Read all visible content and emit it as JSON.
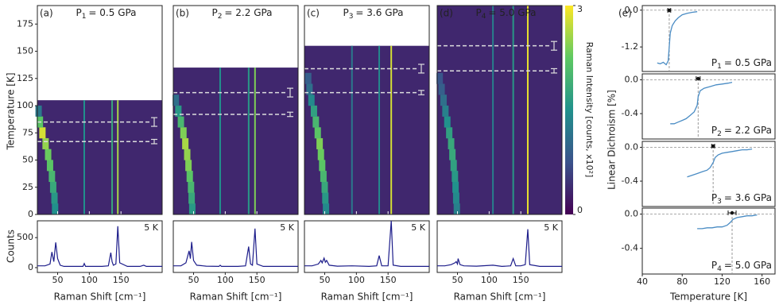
{
  "chart_data": [
    {
      "type": "heatmap",
      "panel": "(a)",
      "pressure": {
        "symbol": "P",
        "index": "1",
        "text": "= 0.5 GPa"
      },
      "ylabel": "Temperature [K]",
      "xlim": [
        18,
        215
      ],
      "xticks": [
        50,
        100,
        150
      ],
      "ylim": [
        0,
        192
      ],
      "yticks": [
        0,
        25,
        50,
        75,
        100,
        125,
        150,
        175
      ],
      "tmax": 105,
      "background": 0.35,
      "soft_mode": {
        "temperature": [
          5,
          15,
          25,
          35,
          45,
          55,
          65,
          75,
          85,
          95
        ],
        "shift": [
          46,
          45,
          43,
          41,
          38,
          35,
          31,
          26,
          22,
          20
        ],
        "intensity": [
          1.5,
          1.6,
          1.8,
          2.0,
          2.2,
          2.3,
          2.5,
          2.8,
          2.2,
          1.2
        ]
      },
      "lines": {
        "shift": [
          92,
          136,
          145
        ],
        "intensity": [
          1.5,
          1.8,
          2.6
        ]
      },
      "transitions": [
        {
          "value": 85,
          "error": 4
        },
        {
          "value": 67,
          "error": 2
        }
      ]
    },
    {
      "type": "heatmap",
      "panel": "(b)",
      "pressure": {
        "symbol": "P",
        "index": "2",
        "text": "= 2.2 GPa"
      },
      "xlim": [
        18,
        215
      ],
      "xticks": [
        50,
        100,
        150
      ],
      "ylim": [
        0,
        192
      ],
      "tmax": 135,
      "background": 0.35,
      "soft_mode": {
        "temperature": [
          5,
          15,
          25,
          35,
          45,
          55,
          65,
          75,
          85,
          95,
          105
        ],
        "shift": [
          48,
          47,
          46,
          44,
          42,
          40,
          37,
          34,
          30,
          26,
          22
        ],
        "intensity": [
          1.6,
          1.8,
          2.0,
          2.2,
          2.4,
          2.5,
          2.6,
          2.4,
          2.0,
          1.6,
          1.1
        ]
      },
      "lines": {
        "shift": [
          92,
          137,
          147
        ],
        "intensity": [
          1.5,
          1.6,
          2.4
        ]
      },
      "transitions": [
        {
          "value": 112,
          "error": 4
        },
        {
          "value": 92,
          "error": 2
        }
      ]
    },
    {
      "type": "heatmap",
      "panel": "(c)",
      "pressure": {
        "symbol": "P",
        "index": "3",
        "text": "= 3.6 GPa"
      },
      "xlim": [
        18,
        215
      ],
      "xticks": [
        50,
        100,
        150
      ],
      "ylim": [
        0,
        192
      ],
      "tmax": 155,
      "background": 0.35,
      "soft_mode": {
        "temperature": [
          5,
          15,
          25,
          35,
          45,
          55,
          65,
          75,
          85,
          95,
          105,
          115,
          125
        ],
        "shift": [
          52,
          51,
          50,
          48,
          46,
          44,
          42,
          39,
          36,
          33,
          29,
          26,
          24
        ],
        "intensity": [
          1.4,
          1.6,
          1.8,
          2.0,
          2.2,
          2.3,
          2.4,
          2.2,
          2.0,
          1.7,
          1.4,
          1.1,
          0.9
        ]
      },
      "lines": {
        "shift": [
          93,
          136,
          155
        ],
        "intensity": [
          1.2,
          1.4,
          2.8
        ]
      },
      "transitions": [
        {
          "value": 134,
          "error": 4
        },
        {
          "value": 112,
          "error": 2
        }
      ]
    },
    {
      "type": "heatmap",
      "panel": "(d)",
      "pressure": {
        "symbol": "P",
        "index": "4",
        "text": "= 5.0 GPa"
      },
      "xlim": [
        18,
        215
      ],
      "xticks": [
        50,
        100,
        150
      ],
      "ylim": [
        0,
        192
      ],
      "tmax": 192,
      "background": 0.35,
      "soft_mode": {
        "temperature": [
          5,
          15,
          25,
          35,
          45,
          55,
          65,
          75,
          85,
          95,
          105,
          115,
          125
        ],
        "shift": [
          49,
          48,
          47,
          46,
          44,
          42,
          40,
          37,
          34,
          31,
          28,
          25,
          22
        ],
        "intensity": [
          1.3,
          1.4,
          1.5,
          1.6,
          1.7,
          1.8,
          1.8,
          1.7,
          1.5,
          1.3,
          1.1,
          0.9,
          0.8
        ]
      },
      "lines": {
        "shift": [
          106,
          138,
          161
        ],
        "intensity": [
          1.3,
          1.6,
          2.9
        ]
      },
      "transitions": [
        {
          "value": 155,
          "error": 4
        },
        {
          "value": 132,
          "error": 2
        }
      ],
      "colorbar": {
        "label": "Raman Intensity [counts, x10²]",
        "lim": [
          0,
          3
        ],
        "ticks": [
          0,
          3
        ]
      }
    },
    {
      "type": "line",
      "xlabel": "Raman Shift [cm⁻¹]",
      "ylabel": "Counts",
      "annotation": "5 K",
      "xlim": [
        18,
        215
      ],
      "xticks": [
        50,
        100,
        150
      ],
      "ylim": [
        -80,
        780
      ],
      "yticks": [
        0,
        500
      ],
      "color": "#1c1c8a",
      "x": [
        18,
        30,
        38,
        41,
        44,
        47,
        50,
        54,
        60,
        80,
        90,
        92,
        94,
        120,
        130,
        134,
        136,
        138,
        142,
        145,
        148,
        160,
        180,
        186,
        190,
        215
      ],
      "values": [
        30,
        30,
        60,
        260,
        100,
        420,
        150,
        40,
        20,
        20,
        20,
        70,
        20,
        20,
        30,
        250,
        100,
        40,
        60,
        690,
        80,
        20,
        20,
        40,
        20,
        20
      ]
    },
    {
      "type": "line",
      "xlabel": "Raman Shift [cm⁻¹]",
      "annotation": "5 K",
      "xlim": [
        18,
        215
      ],
      "xticks": [
        50,
        100,
        150
      ],
      "ylim": [
        -80,
        780
      ],
      "color": "#1c1c8a",
      "x": [
        18,
        30,
        38,
        43,
        45,
        47,
        50,
        55,
        70,
        90,
        92,
        94,
        120,
        132,
        137,
        140,
        143,
        147,
        150,
        160,
        215
      ],
      "values": [
        30,
        30,
        80,
        280,
        150,
        430,
        120,
        40,
        25,
        20,
        40,
        20,
        20,
        30,
        350,
        60,
        40,
        650,
        60,
        20,
        20
      ]
    },
    {
      "type": "line",
      "xlabel": "Raman Shift [cm⁻¹]",
      "annotation": "5 K",
      "xlim": [
        18,
        215
      ],
      "xticks": [
        50,
        100,
        150
      ],
      "ylim": [
        -80,
        780
      ],
      "color": "#1c1c8a",
      "x": [
        18,
        30,
        40,
        44,
        46,
        49,
        51,
        53,
        57,
        70,
        93,
        120,
        132,
        136,
        140,
        150,
        155,
        158,
        170,
        215
      ],
      "values": [
        30,
        30,
        60,
        120,
        80,
        160,
        90,
        120,
        40,
        25,
        30,
        20,
        30,
        200,
        30,
        30,
        780,
        40,
        20,
        20
      ]
    },
    {
      "type": "line",
      "xlabel": "Raman Shift [cm⁻¹]",
      "annotation": "5 K",
      "xlim": [
        18,
        215
      ],
      "xticks": [
        50,
        100,
        150
      ],
      "ylim": [
        -80,
        780
      ],
      "color": "#1c1c8a",
      "x": [
        18,
        30,
        40,
        46,
        48,
        50,
        51,
        54,
        60,
        80,
        106,
        120,
        134,
        138,
        142,
        150,
        157,
        161,
        164,
        180,
        215
      ],
      "values": [
        30,
        30,
        50,
        80,
        100,
        60,
        150,
        50,
        30,
        25,
        40,
        20,
        30,
        150,
        30,
        30,
        50,
        640,
        50,
        20,
        20
      ]
    },
    {
      "type": "dichroism",
      "panel": "(e)",
      "ylabel": "Linear Dichroism [%]",
      "pressure": {
        "symbol": "P",
        "index": "1",
        "text": "= 0.5 GPa"
      },
      "xlim": [
        40,
        173
      ],
      "ylim": [
        -2.0,
        0.15
      ],
      "yticks": [
        {
          "value": 0,
          "label": "0.0"
        },
        -1.2
      ],
      "color": "#4a8cc4",
      "x": [
        55,
        58,
        61,
        64,
        66,
        67,
        68,
        70,
        73,
        76,
        80,
        85,
        90,
        95
      ],
      "values": [
        -1.72,
        -1.75,
        -1.7,
        -1.78,
        -1.65,
        -1.2,
        -0.75,
        -0.5,
        -0.35,
        -0.25,
        -0.15,
        -0.1,
        -0.07,
        -0.05
      ],
      "transition": {
        "value": 67,
        "error": 1.5
      }
    },
    {
      "type": "dichroism",
      "pressure": {
        "symbol": "P",
        "index": "2",
        "text": "= 2.2 GPa"
      },
      "xlim": [
        40,
        173
      ],
      "ylim": [
        -0.7,
        0.07
      ],
      "yticks": [
        {
          "value": 0,
          "label": "0.0"
        },
        -0.4
      ],
      "color": "#4a8cc4",
      "x": [
        68,
        72,
        76,
        80,
        84,
        88,
        92,
        95,
        96,
        98,
        102,
        108,
        114,
        120,
        126,
        130
      ],
      "values": [
        -0.52,
        -0.52,
        -0.5,
        -0.48,
        -0.46,
        -0.42,
        -0.38,
        -0.3,
        -0.2,
        -0.13,
        -0.1,
        -0.08,
        -0.06,
        -0.05,
        -0.04,
        -0.03
      ],
      "transition": {
        "value": 96,
        "error": 2
      }
    },
    {
      "type": "dichroism",
      "pressure": {
        "symbol": "P",
        "index": "3",
        "text": "= 3.6 GPa"
      },
      "xlim": [
        40,
        173
      ],
      "ylim": [
        -0.7,
        0.07
      ],
      "yticks": [
        {
          "value": 0,
          "label": "0.0"
        },
        -0.4
      ],
      "color": "#4a8cc4",
      "x": [
        85,
        90,
        95,
        100,
        105,
        108,
        111,
        113,
        116,
        120,
        125,
        130,
        135,
        140,
        145,
        150
      ],
      "values": [
        -0.35,
        -0.33,
        -0.31,
        -0.29,
        -0.27,
        -0.24,
        -0.18,
        -0.12,
        -0.09,
        -0.07,
        -0.06,
        -0.05,
        -0.04,
        -0.03,
        -0.03,
        -0.02
      ],
      "transition": {
        "value": 111,
        "error": 1.5
      }
    },
    {
      "type": "dichroism",
      "xlabel": "Temperature [K]",
      "pressure": {
        "symbol": "P",
        "index": "4",
        "text": "= 5.0 GPa"
      },
      "xlim": [
        40,
        173
      ],
      "ylim": [
        -0.7,
        0.07
      ],
      "yticks": [
        {
          "value": 0,
          "label": "0.0"
        },
        -0.4
      ],
      "xticks": [
        40,
        80,
        120,
        160
      ],
      "color": "#4a8cc4",
      "x": [
        95,
        100,
        105,
        110,
        115,
        120,
        125,
        128,
        131,
        135,
        140,
        145,
        150,
        155
      ],
      "values": [
        -0.17,
        -0.17,
        -0.16,
        -0.16,
        -0.15,
        -0.15,
        -0.13,
        -0.1,
        -0.06,
        -0.04,
        -0.03,
        -0.02,
        -0.02,
        -0.01
      ],
      "transition": {
        "value": 130,
        "error": 4
      }
    }
  ]
}
